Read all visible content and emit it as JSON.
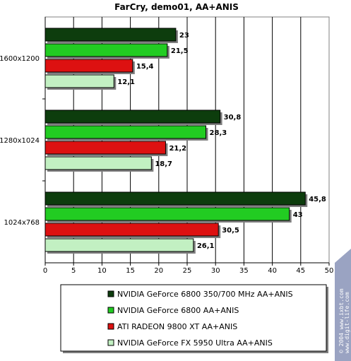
{
  "chart_data": {
    "type": "bar",
    "orientation": "horizontal",
    "title": "FarCry, demo01, AA+ANIS",
    "categories": [
      "1600x1200",
      "1280x1024",
      "1024x768"
    ],
    "series": [
      {
        "name": "NVIDIA GeForce 6800 350/700 MHz AA+ANIS",
        "values": [
          23,
          30.8,
          45.8
        ],
        "labels": [
          "23",
          "30,8",
          "45,8"
        ],
        "color": "#0d3d0d"
      },
      {
        "name": "NVIDIA GeForce 6800 AA+ANIS",
        "values": [
          21.5,
          28.3,
          43
        ],
        "labels": [
          "21,5",
          "28,3",
          "43"
        ],
        "color": "#22cc22"
      },
      {
        "name": "ATI RADEON 9800 XT AA+ANIS",
        "values": [
          15.4,
          21.2,
          30.5
        ],
        "labels": [
          "15,4",
          "21,2",
          "30,5"
        ],
        "color": "#dd1111"
      },
      {
        "name": "NVIDIA GeForce FX 5950 Ultra AA+ANIS",
        "values": [
          12.1,
          18.7,
          26.1
        ],
        "labels": [
          "12,1",
          "18,7",
          "26,1"
        ],
        "color": "#c2f0c2"
      }
    ],
    "xlim": [
      0,
      50
    ],
    "xticks": [
      "0",
      "5",
      "10",
      "15",
      "20",
      "25",
      "30",
      "35",
      "40",
      "45",
      "50"
    ],
    "grid": true,
    "legend_position": "bottom"
  },
  "watermark": {
    "line1": "© 2004 www.ixbt.com",
    "line2": "www.digit-life.com"
  }
}
